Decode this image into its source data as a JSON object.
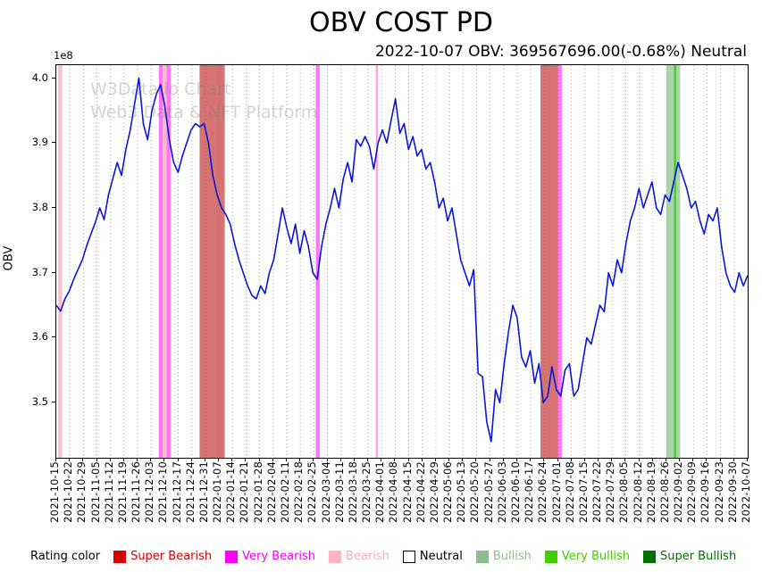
{
  "title": "OBV COST PD",
  "subtitle": "2022-10-07 OBV: 369567696.00(-0.68%) Neutral",
  "watermark": {
    "line1": "W3Data.io Chart",
    "line2": "Web3 Data & NFT Platform"
  },
  "y_axis": {
    "label": "OBV",
    "offset_text": "1e8",
    "ticks": [
      4.0,
      3.9,
      3.8,
      3.7,
      3.6,
      3.5
    ]
  },
  "x_axis": {
    "ticks": [
      "2021-10-15",
      "2021-10-22",
      "2021-10-29",
      "2021-11-05",
      "2021-11-12",
      "2021-11-19",
      "2021-11-26",
      "2021-12-03",
      "2021-12-10",
      "2021-12-17",
      "2021-12-24",
      "2021-12-31",
      "2022-01-07",
      "2022-01-14",
      "2022-01-21",
      "2022-01-28",
      "2022-02-04",
      "2022-02-11",
      "2022-02-18",
      "2022-02-25",
      "2022-03-04",
      "2022-03-11",
      "2022-03-18",
      "2022-03-25",
      "2022-04-01",
      "2022-04-08",
      "2022-04-15",
      "2022-04-22",
      "2022-04-29",
      "2022-05-06",
      "2022-05-13",
      "2022-05-20",
      "2022-05-27",
      "2022-06-03",
      "2022-06-10",
      "2022-06-17",
      "2022-06-24",
      "2022-07-01",
      "2022-07-08",
      "2022-07-15",
      "2022-07-22",
      "2022-07-29",
      "2022-08-05",
      "2022-08-12",
      "2022-08-19",
      "2022-08-26",
      "2022-09-02",
      "2022-09-09",
      "2022-09-16",
      "2022-09-23",
      "2022-09-30",
      "2022-10-07"
    ]
  },
  "legend": {
    "label": "Rating color",
    "items": [
      {
        "label": "Super Bearish",
        "color": "#d60000",
        "text": "#d60000"
      },
      {
        "label": "Very Bearish",
        "color": "#ff00ff",
        "text": "#ff00ff"
      },
      {
        "label": "Bearish",
        "color": "#ffb6c1",
        "text": "#ffaab8"
      },
      {
        "label": "Neutral",
        "color": "#ffffff",
        "text": "#000000",
        "border": "#000000"
      },
      {
        "label": "Bullish",
        "color": "#8fbc8f",
        "text": "#8fbc8f"
      },
      {
        "label": "Very Bullish",
        "color": "#44cc00",
        "text": "#44cc00"
      },
      {
        "label": "Super Bullish",
        "color": "#007000",
        "text": "#007000"
      }
    ]
  },
  "chart_data": {
    "type": "line",
    "title": "OBV COST PD",
    "xlabel": "",
    "ylabel": "OBV",
    "y_unit": "1e8",
    "grid": "vertical-dotted",
    "x_start": "2021-10-15",
    "x_end": "2022-10-07",
    "ylim": [
      3.415,
      4.02
    ],
    "line_color": "#0b16d9",
    "series": [
      {
        "name": "OBV",
        "values": [
          3.65,
          3.641,
          3.66,
          3.672,
          3.69,
          3.705,
          3.72,
          3.742,
          3.76,
          3.778,
          3.8,
          3.782,
          3.82,
          3.845,
          3.87,
          3.85,
          3.89,
          3.92,
          3.96,
          4.0,
          3.93,
          3.905,
          3.95,
          3.975,
          3.99,
          3.955,
          3.905,
          3.87,
          3.855,
          3.88,
          3.9,
          3.92,
          3.93,
          3.925,
          3.93,
          3.9,
          3.85,
          3.82,
          3.8,
          3.79,
          3.775,
          3.745,
          3.72,
          3.7,
          3.68,
          3.665,
          3.66,
          3.68,
          3.668,
          3.7,
          3.72,
          3.76,
          3.8,
          3.77,
          3.745,
          3.775,
          3.73,
          3.765,
          3.74,
          3.7,
          3.69,
          3.74,
          3.775,
          3.8,
          3.83,
          3.8,
          3.845,
          3.87,
          3.84,
          3.905,
          3.895,
          3.91,
          3.895,
          3.86,
          3.9,
          3.92,
          3.9,
          3.935,
          3.968,
          3.915,
          3.93,
          3.89,
          3.91,
          3.88,
          3.89,
          3.86,
          3.87,
          3.84,
          3.8,
          3.815,
          3.78,
          3.8,
          3.76,
          3.72,
          3.7,
          3.68,
          3.705,
          3.545,
          3.54,
          3.47,
          3.44,
          3.52,
          3.5,
          3.56,
          3.61,
          3.65,
          3.63,
          3.57,
          3.555,
          3.58,
          3.53,
          3.56,
          3.5,
          3.51,
          3.555,
          3.52,
          3.51,
          3.55,
          3.56,
          3.51,
          3.52,
          3.56,
          3.6,
          3.59,
          3.62,
          3.65,
          3.64,
          3.7,
          3.68,
          3.72,
          3.7,
          3.745,
          3.78,
          3.8,
          3.83,
          3.8,
          3.82,
          3.84,
          3.8,
          3.79,
          3.82,
          3.81,
          3.84,
          3.87,
          3.85,
          3.83,
          3.8,
          3.81,
          3.78,
          3.76,
          3.79,
          3.78,
          3.8,
          3.74,
          3.7,
          3.68,
          3.67,
          3.7,
          3.68,
          3.696
        ]
      }
    ],
    "bands": [
      {
        "rating": "Bearish",
        "from": "2021-10-16",
        "to": "2021-10-18",
        "fill": "rgba(255,182,193,0.9)"
      },
      {
        "rating": "Very Bearish",
        "from": "2021-12-07",
        "to": "2021-12-09",
        "fill": "rgba(255,0,255,0.55)"
      },
      {
        "rating": "Bearish",
        "from": "2021-12-09",
        "to": "2021-12-11",
        "fill": "rgba(255,182,193,0.9)"
      },
      {
        "rating": "Very Bearish",
        "from": "2021-12-11",
        "to": "2021-12-13",
        "fill": "rgba(255,0,255,0.55)"
      },
      {
        "rating": "Super Bearish",
        "from": "2021-12-28",
        "to": "2022-01-10",
        "fill": "rgba(198,62,62,0.72)"
      },
      {
        "rating": "Very Bearish",
        "from": "2022-02-26",
        "to": "2022-02-28",
        "fill": "rgba(255,0,255,0.55)"
      },
      {
        "rating": "Very Bearish",
        "from": "2022-03-29",
        "to": "2022-03-30",
        "fill": "rgba(255,80,200,0.55)"
      },
      {
        "rating": "Super Bearish",
        "from": "2022-06-22",
        "to": "2022-07-01",
        "fill": "rgba(198,62,62,0.72)"
      },
      {
        "rating": "Very Bearish",
        "from": "2022-07-01",
        "to": "2022-07-03",
        "fill": "rgba(255,0,255,0.55)"
      },
      {
        "rating": "Bullish",
        "from": "2022-08-26",
        "to": "2022-09-02",
        "fill": "rgba(144,195,144,0.75)"
      },
      {
        "rating": "Very Bullish",
        "from": "2022-08-30",
        "to": "2022-08-31",
        "fill": "rgba(60,200,30,0.95)"
      }
    ]
  }
}
